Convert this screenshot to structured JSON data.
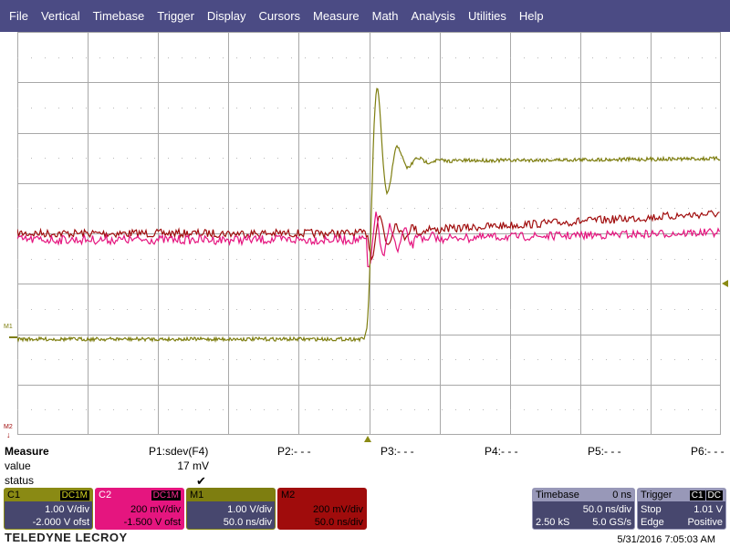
{
  "menu": [
    "File",
    "Vertical",
    "Timebase",
    "Trigger",
    "Display",
    "Cursors",
    "Measure",
    "Math",
    "Analysis",
    "Utilities",
    "Help"
  ],
  "markers": {
    "m1": "M1",
    "m2": "M2"
  },
  "colors": {
    "c1": "#8a8a14",
    "c2": "#e5157f",
    "m1": "#7e7e10",
    "m2": "#a00c0c",
    "grid": "#a8a8a8"
  },
  "measure": {
    "title": "Measure",
    "value_label": "value",
    "status_label": "status",
    "params": [
      {
        "name": "P1:sdev(F4)",
        "value": "17 mV",
        "status": "✔"
      },
      {
        "name": "P2:- - -"
      },
      {
        "name": "P3:- - -"
      },
      {
        "name": "P4:- - -"
      },
      {
        "name": "P5:- - -"
      },
      {
        "name": "P6:- - -"
      }
    ]
  },
  "channels": {
    "c1": {
      "label": "C1",
      "coupling": "DC1M",
      "scale": "1.00 V/div",
      "offset": "-2.000 V ofst"
    },
    "c2": {
      "label": "C2",
      "coupling": "DC1M",
      "scale": "200 mV/div",
      "offset": "-1.500 V ofst"
    },
    "m1": {
      "label": "M1",
      "scale": "1.00 V/div",
      "time": "50.0 ns/div"
    },
    "m2": {
      "label": "M2",
      "scale": "200 mV/div",
      "time": "50.0 ns/div"
    }
  },
  "timebase": {
    "label": "Timebase",
    "delay": "0 ns",
    "time_div": "50.0 ns/div",
    "samples": "2.50 kS",
    "rate": "5.0 GS/s"
  },
  "trigger": {
    "label": "Trigger",
    "source": "C1",
    "coupling": "DC",
    "mode": "Stop",
    "level": "1.01 V",
    "type": "Edge",
    "slope": "Positive"
  },
  "footer": {
    "brand": "TELEDYNE LECROY",
    "datetime": "5/31/2016 7:05:03 AM"
  }
}
